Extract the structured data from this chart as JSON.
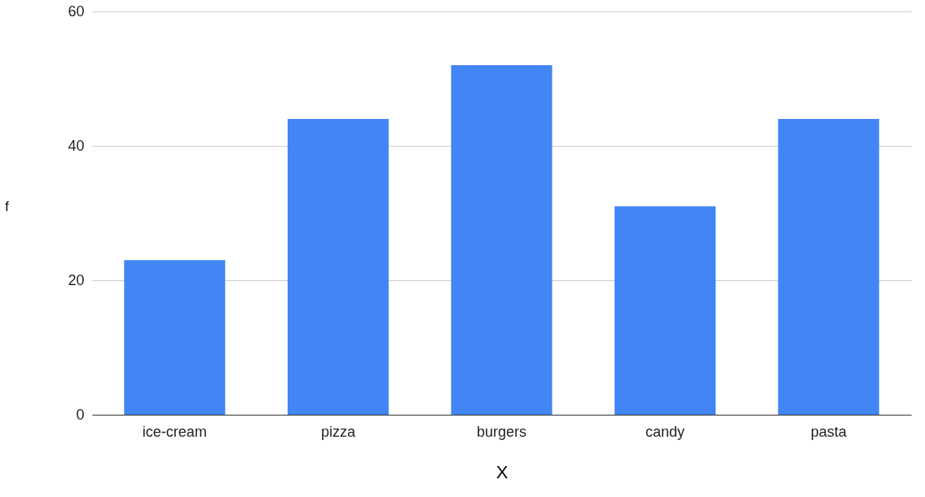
{
  "chart_data": {
    "type": "bar",
    "xlabel": "X",
    "ylabel": "f",
    "categories": [
      "ice-cream",
      "pizza",
      "burgers",
      "candy",
      "pasta"
    ],
    "values": [
      23,
      44,
      52,
      31,
      44
    ],
    "color": "#4285f4",
    "ylim": [
      0,
      60
    ],
    "yticks": [
      0,
      20,
      40,
      60
    ],
    "grid": "y"
  }
}
